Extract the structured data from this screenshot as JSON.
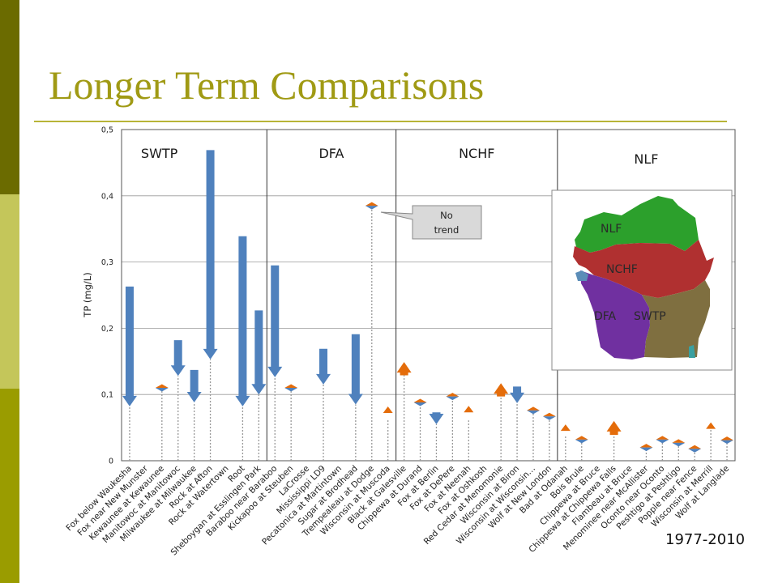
{
  "slide": {
    "title": "Longer Term Comparisons",
    "period": "1977-2010"
  },
  "colors": {
    "decrease": "#4f81bd",
    "increase": "#e46c0a",
    "no_trend_top": "#e46c0a",
    "no_trend_bottom": "#4f81bd",
    "baseline": "#999999"
  },
  "chart_data": {
    "type": "arrow",
    "ylabel": "TP (mg/L)",
    "ylim": [
      0,
      0.5
    ],
    "yticks": [
      "0",
      "0,1",
      "0,2",
      "0,3",
      "0,4",
      "0,5"
    ],
    "categories": [
      "Fox below Waukesha",
      "Fox near New Munster",
      "Kewaunee at Kewaunee",
      "Manitowoc at Manitowoc",
      "Milwaukee at Milwaukee",
      "Rock at Afton",
      "Rock at Watertown",
      "Root",
      "Sheboygan at Esslingen Park",
      "Baraboo near Baraboo",
      "Kickapoo at Steuben",
      "LaCrosse",
      "Mississippi LD9",
      "Pecatonica at Martintown",
      "Sugar at Brodhead",
      "Trempealeau at Dodge",
      "Wisconsin at Muscoda",
      "Black at Galesville",
      "Chippewa at Durand",
      "Fox at Berlin",
      "Fox at DePere",
      "Fox at Neenah",
      "Fox at Oshkosh",
      "Red Cedar at Menomonie",
      "Wisconsin at Biron",
      "Wisconsin at Wisconsin…",
      "Wolf at New London",
      "Bad at Odanah",
      "Bois Brule",
      "Chippewa at Bruce",
      "Chippewa at Chippewa Falls",
      "Flambeau at Bruce",
      "Menominee near McAllister",
      "Oconto near Oconto",
      "Peshtigo at Peshtigo",
      "Popple near Fence",
      "Wisconsin at Merrill",
      "Wolf at Langlade"
    ],
    "series": [
      {
        "category": "Fox below Waukesha",
        "start": 0.263,
        "end": 0.082,
        "trend": "decrease"
      },
      {
        "category": "Fox near New Munster",
        "start": null,
        "end": null,
        "trend": "none"
      },
      {
        "category": "Kewaunee at Kewaunee",
        "start": 0.11,
        "end": 0.11,
        "trend": "no trend"
      },
      {
        "category": "Manitowoc at Manitowoc",
        "start": 0.182,
        "end": 0.128,
        "trend": "decrease"
      },
      {
        "category": "Milwaukee at Milwaukee",
        "start": 0.137,
        "end": 0.088,
        "trend": "decrease"
      },
      {
        "category": "Rock at Afton",
        "start": 0.469,
        "end": 0.153,
        "trend": "decrease"
      },
      {
        "category": "Rock at Watertown",
        "start": null,
        "end": null,
        "trend": "none"
      },
      {
        "category": "Root",
        "start": 0.339,
        "end": 0.082,
        "trend": "decrease"
      },
      {
        "category": "Sheboygan at Esslingen Park",
        "start": 0.227,
        "end": 0.1,
        "trend": "decrease"
      },
      {
        "category": "Baraboo near Baraboo",
        "start": 0.295,
        "end": 0.126,
        "trend": "decrease"
      },
      {
        "category": "Kickapoo at Steuben",
        "start": 0.11,
        "end": 0.11,
        "trend": "no trend"
      },
      {
        "category": "LaCrosse",
        "start": null,
        "end": null,
        "trend": "none"
      },
      {
        "category": "Mississippi LD9",
        "start": 0.169,
        "end": 0.115,
        "trend": "decrease"
      },
      {
        "category": "Pecatonica at Martintown",
        "start": null,
        "end": null,
        "trend": "none"
      },
      {
        "category": "Sugar at Brodhead",
        "start": 0.191,
        "end": 0.085,
        "trend": "decrease"
      },
      {
        "category": "Trempealeau at Dodge",
        "start": 0.385,
        "end": 0.385,
        "trend": "no trend"
      },
      {
        "category": "Wisconsin at Muscoda",
        "start": 0.062,
        "end": 0.077,
        "trend": "increase"
      },
      {
        "category": "Black at Galesville",
        "start": 0.129,
        "end": 0.149,
        "trend": "increase"
      },
      {
        "category": "Chippewa at Durand",
        "start": 0.088,
        "end": 0.088,
        "trend": "no trend"
      },
      {
        "category": "Fox at Berlin",
        "start": 0.073,
        "end": 0.055,
        "trend": "decrease"
      },
      {
        "category": "Fox at DePere",
        "start": 0.097,
        "end": 0.097,
        "trend": "no trend"
      },
      {
        "category": "Fox at Neenah",
        "start": 0.061,
        "end": 0.078,
        "trend": "increase"
      },
      {
        "category": "Fox at Oshkosh",
        "start": null,
        "end": null,
        "trend": "none"
      },
      {
        "category": "Red Cedar at Menomonie",
        "start": 0.097,
        "end": 0.117,
        "trend": "increase"
      },
      {
        "category": "Wisconsin at Biron",
        "start": 0.112,
        "end": 0.087,
        "trend": "decrease"
      },
      {
        "category": "Wisconsin at Wisconsin…",
        "start": 0.076,
        "end": 0.076,
        "trend": "no trend"
      },
      {
        "category": "Wolf at New London",
        "start": 0.067,
        "end": 0.067,
        "trend": "no trend"
      },
      {
        "category": "Bad at Odanah",
        "start": 0.038,
        "end": 0.05,
        "trend": "increase"
      },
      {
        "category": "Bois Brule",
        "start": 0.032,
        "end": 0.032,
        "trend": "no trend"
      },
      {
        "category": "Chippewa at Bruce",
        "start": null,
        "end": null,
        "trend": "none"
      },
      {
        "category": "Chippewa at Chippewa Falls",
        "start": 0.039,
        "end": 0.06,
        "trend": "increase"
      },
      {
        "category": "Flambeau at Bruce",
        "start": null,
        "end": null,
        "trend": "none"
      },
      {
        "category": "Menominee near McAllister",
        "start": 0.02,
        "end": 0.02,
        "trend": "no trend"
      },
      {
        "category": "Oconto near Oconto",
        "start": 0.032,
        "end": 0.032,
        "trend": "no trend"
      },
      {
        "category": "Peshtigo at Peshtigo",
        "start": 0.027,
        "end": 0.027,
        "trend": "no trend"
      },
      {
        "category": "Popple near Fence",
        "start": 0.018,
        "end": 0.018,
        "trend": "no trend"
      },
      {
        "category": "Wisconsin at Merrill",
        "start": 0.053,
        "end": 0.053,
        "trend": "increase"
      },
      {
        "category": "Wolf at Langlade",
        "start": 0.031,
        "end": 0.031,
        "trend": "no trend"
      }
    ],
    "groups": [
      {
        "name": "SWTP",
        "first": 0,
        "last": 8
      },
      {
        "name": "DFA",
        "first": 9,
        "last": 16
      },
      {
        "name": "NCHF",
        "first": 17,
        "last": 26
      },
      {
        "name": "NLF",
        "first": 27,
        "last": 37
      }
    ],
    "annotation": {
      "text_lines": [
        "No",
        "trend"
      ],
      "target": "Trempealeau at Dodge"
    },
    "inset_map": {
      "labels": [
        "NLF",
        "NCHF",
        "DFA",
        "SWTP"
      ],
      "colors": {
        "NLF": "#2ca02c",
        "NCHF": "#b03030",
        "DFA": "#7030a0",
        "SWTP": "#7f6f40",
        "lakes": "#5b8db8"
      }
    },
    "grid": "horizontal"
  }
}
